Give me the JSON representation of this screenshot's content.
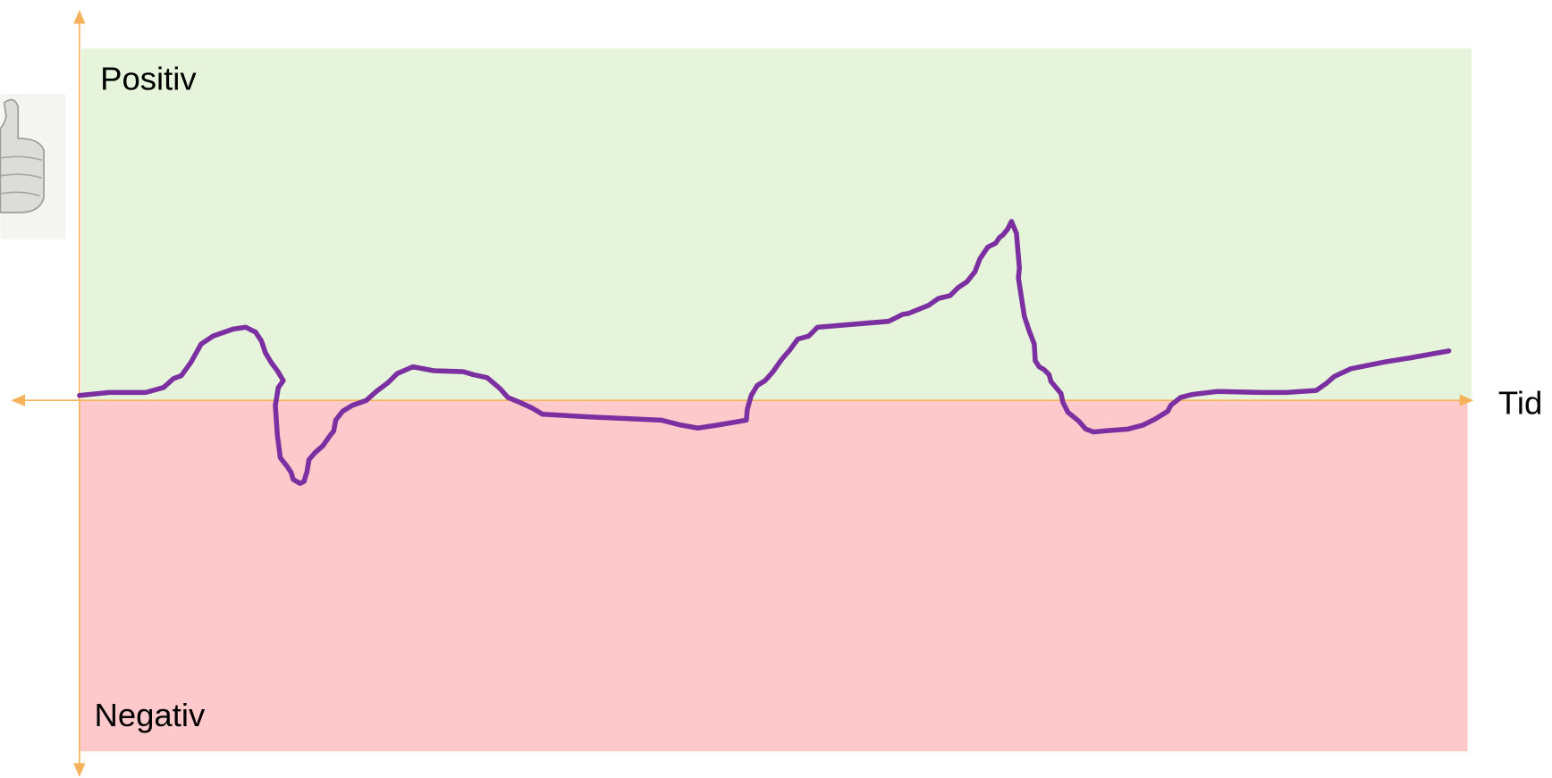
{
  "labels": {
    "positive": "Positiv",
    "negative": "Negativ",
    "time_axis": "Tid"
  }
}
